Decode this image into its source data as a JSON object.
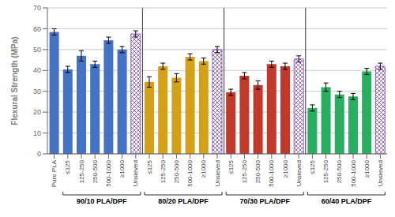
{
  "chart_data": {
    "type": "bar",
    "ylabel": "Flexural Strength (MPa)",
    "ylim": [
      0,
      70
    ],
    "yticks": [
      0,
      10,
      20,
      30,
      40,
      50,
      60,
      70
    ],
    "grid": true,
    "hatch_color": "#7b3fbe",
    "groups": [
      {
        "color": "#4472c4",
        "categories": [
          "Pure PLA"
        ],
        "values": [
          58.5
        ],
        "errors": [
          1.5
        ],
        "hatched": [
          false
        ]
      },
      {
        "label": "90/10 PLA/DPF",
        "color": "#4472c4",
        "categories": [
          "≤125",
          "125-250",
          "250-500",
          "500-1000",
          "≥1000",
          "Unsieved"
        ],
        "values": [
          40.5,
          47.0,
          43.0,
          54.5,
          50.0,
          57.5
        ],
        "errors": [
          1.5,
          2.5,
          1.5,
          1.5,
          1.5,
          1.5
        ],
        "hatched": [
          false,
          false,
          false,
          false,
          false,
          true
        ]
      },
      {
        "label": "80/20 PLA/DPF",
        "color": "#d4a017",
        "categories": [
          "≤125",
          "125-250",
          "250-500",
          "500-1000",
          "≥1000",
          "Unsieved"
        ],
        "values": [
          34.5,
          42.0,
          36.5,
          46.5,
          44.5,
          50.0
        ],
        "errors": [
          2.5,
          1.5,
          2.0,
          1.5,
          1.5,
          1.5
        ],
        "hatched": [
          false,
          false,
          false,
          false,
          false,
          true
        ]
      },
      {
        "label": "70/30 PLA/DPF",
        "color": "#c0392b",
        "categories": [
          "≤125",
          "125-250",
          "250-500",
          "500-1000",
          "≥1000",
          "Unsieved"
        ],
        "values": [
          29.5,
          37.5,
          33.0,
          43.0,
          42.0,
          45.5
        ],
        "errors": [
          1.5,
          1.5,
          2.0,
          1.5,
          1.5,
          1.5
        ],
        "hatched": [
          false,
          false,
          false,
          false,
          false,
          true
        ]
      },
      {
        "label": "60/40 PLA/DPF",
        "color": "#27ae60",
        "categories": [
          "≤125",
          "125-250",
          "250-500",
          "500-1000",
          "≥1000",
          "Unsieved"
        ],
        "values": [
          22.0,
          32.0,
          28.5,
          27.5,
          39.5,
          42.0
        ],
        "errors": [
          1.5,
          2.0,
          1.5,
          1.5,
          1.5,
          1.5
        ],
        "hatched": [
          false,
          false,
          false,
          false,
          false,
          true
        ]
      }
    ]
  }
}
